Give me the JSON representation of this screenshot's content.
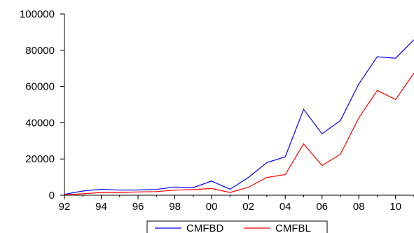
{
  "chart_data": {
    "type": "line",
    "x": [
      1992,
      1993,
      1994,
      1995,
      1996,
      1997,
      1998,
      1999,
      2000,
      2001,
      2002,
      2003,
      2004,
      2005,
      2006,
      2007,
      2008,
      2009,
      2010,
      2011
    ],
    "x_tick_values": [
      1992,
      1994,
      1996,
      1998,
      2000,
      2002,
      2004,
      2006,
      2008,
      2010
    ],
    "x_tick_labels": [
      "92",
      "94",
      "96",
      "98",
      "00",
      "02",
      "04",
      "06",
      "08",
      "10"
    ],
    "y_ticks": [
      0,
      20000,
      40000,
      60000,
      80000,
      100000
    ],
    "y_tick_labels": [
      "0",
      "20000",
      "40000",
      "60000",
      "80000",
      "100000"
    ],
    "ylim": [
      0,
      100000
    ],
    "xlim": [
      1992,
      2011
    ],
    "grid": false,
    "legend_position": "bottom-center",
    "series": [
      {
        "name": "CMFBD",
        "color": "#0000ff",
        "values": [
          500,
          2300,
          3300,
          2800,
          2900,
          3200,
          4500,
          4200,
          7800,
          3300,
          9800,
          18000,
          21200,
          47400,
          33900,
          41200,
          61400,
          76400,
          75600,
          85800
        ]
      },
      {
        "name": "CMFBL",
        "color": "#ff0000",
        "values": [
          200,
          800,
          1500,
          1500,
          1800,
          2000,
          2800,
          3100,
          3700,
          1500,
          4400,
          9800,
          11400,
          28300,
          16400,
          22600,
          42700,
          57800,
          52800,
          67400
        ]
      }
    ]
  }
}
